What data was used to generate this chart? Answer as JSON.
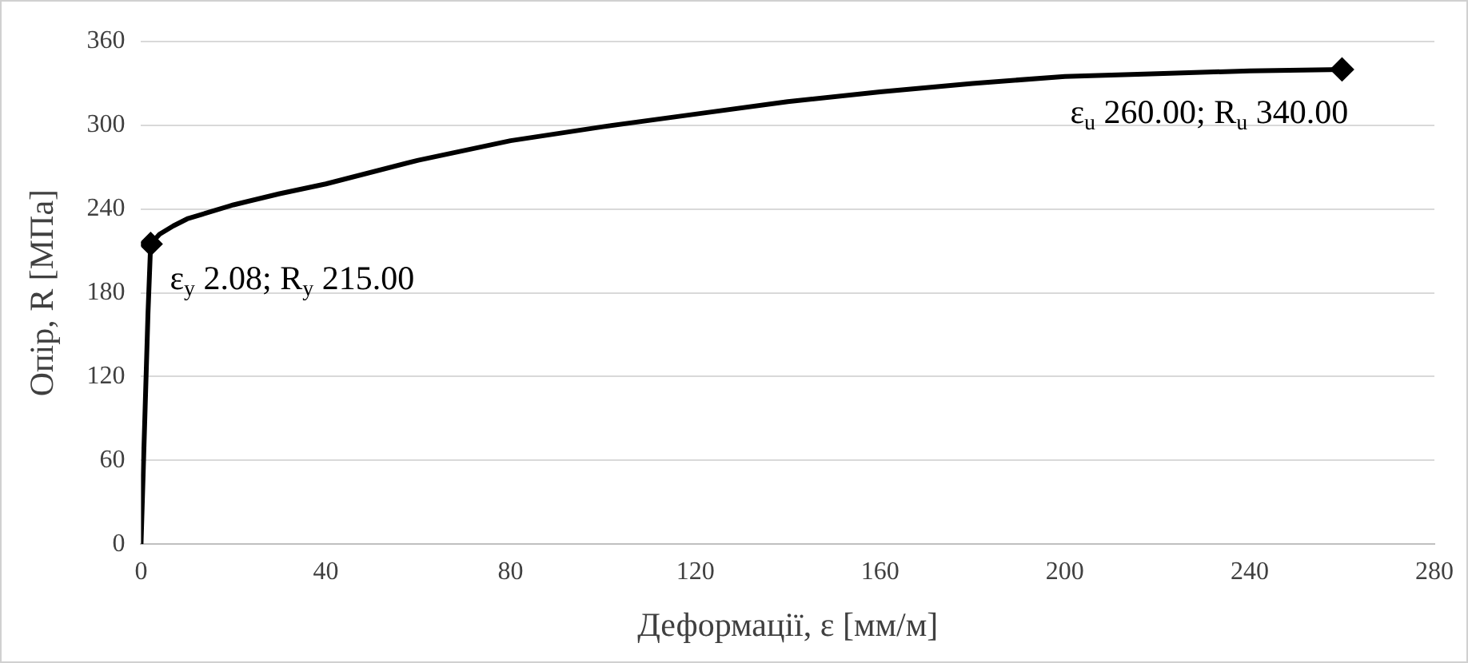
{
  "chart_data": {
    "type": "line",
    "xlabel": "Деформації, ε [мм/м]",
    "ylabel": "Опір, R [МПа]",
    "xlim": [
      0,
      280
    ],
    "xticks": [
      0,
      40,
      80,
      120,
      160,
      200,
      240,
      280
    ],
    "ylim": [
      0,
      360
    ],
    "yticks": [
      0,
      60,
      120,
      180,
      240,
      300,
      360
    ],
    "grid": "y",
    "legend": false,
    "series": [
      {
        "color": "#000000",
        "marker": "none",
        "x": [
          0,
          0.5,
          1,
          1.5,
          2.08,
          4,
          7,
          10,
          15,
          20,
          30,
          40,
          60,
          80,
          100,
          120,
          140,
          160,
          180,
          200,
          220,
          240,
          260
        ],
        "values": [
          0,
          55,
          110,
          165,
          215,
          222,
          228,
          233,
          238,
          243,
          251,
          258,
          275,
          289,
          299,
          308,
          317,
          324,
          330,
          335,
          337,
          339,
          340
        ]
      },
      {
        "type": "scatter",
        "color": "#000000",
        "marker": "diamond",
        "x": [
          2.08,
          260
        ],
        "values": [
          215,
          340
        ]
      }
    ],
    "annotations": [
      {
        "text": "ε$_{y}$ 2.08; R$_{y}$ 215.00",
        "x": 2.08,
        "y": 215
      },
      {
        "text": "ε$_{u}$ 260.00; R$_{u}$ 340.00",
        "x": 260,
        "y": 340
      }
    ]
  }
}
